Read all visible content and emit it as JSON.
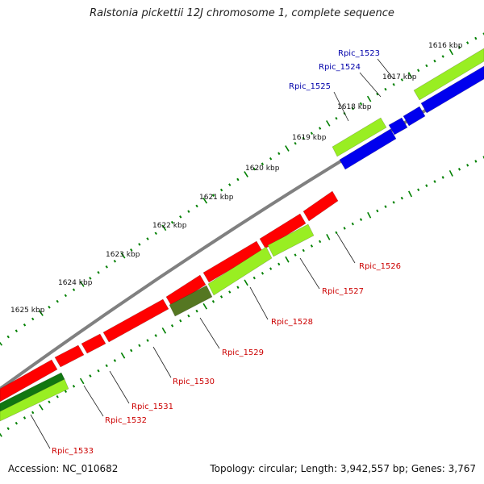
{
  "title": "Ralstonia pickettii 12J chromosome 1, complete sequence",
  "footer": {
    "accession": "Accession: NC_010682",
    "topology": "Topology: circular; Length: 3,942,557 bp; Genes: 3,767"
  },
  "colors": {
    "backbone": "#808080",
    "tick": "#008000",
    "forward_label": "#0000aa",
    "reverse_label": "#cc0000",
    "blue_gene": "#0000ee",
    "red_gene": "#ff0000",
    "lime_gene": "#99ee22",
    "dark_gene": "#557722",
    "deep_green_gene": "#117711"
  },
  "scale_labels": [
    "1616 kbp",
    "1617 kbp",
    "1618 kbp",
    "1619 kbp",
    "1620 kbp",
    "1621 kbp",
    "1622 kbp",
    "1623 kbp",
    "1624 kbp",
    "1625 kbp"
  ],
  "genes_forward": [
    "Rpic_1523",
    "Rpic_1524",
    "Rpic_1525"
  ],
  "genes_reverse": [
    "Rpic_1526",
    "Rpic_1527",
    "Rpic_1528",
    "Rpic_1529",
    "Rpic_1530",
    "Rpic_1531",
    "Rpic_1532",
    "Rpic_1533"
  ]
}
